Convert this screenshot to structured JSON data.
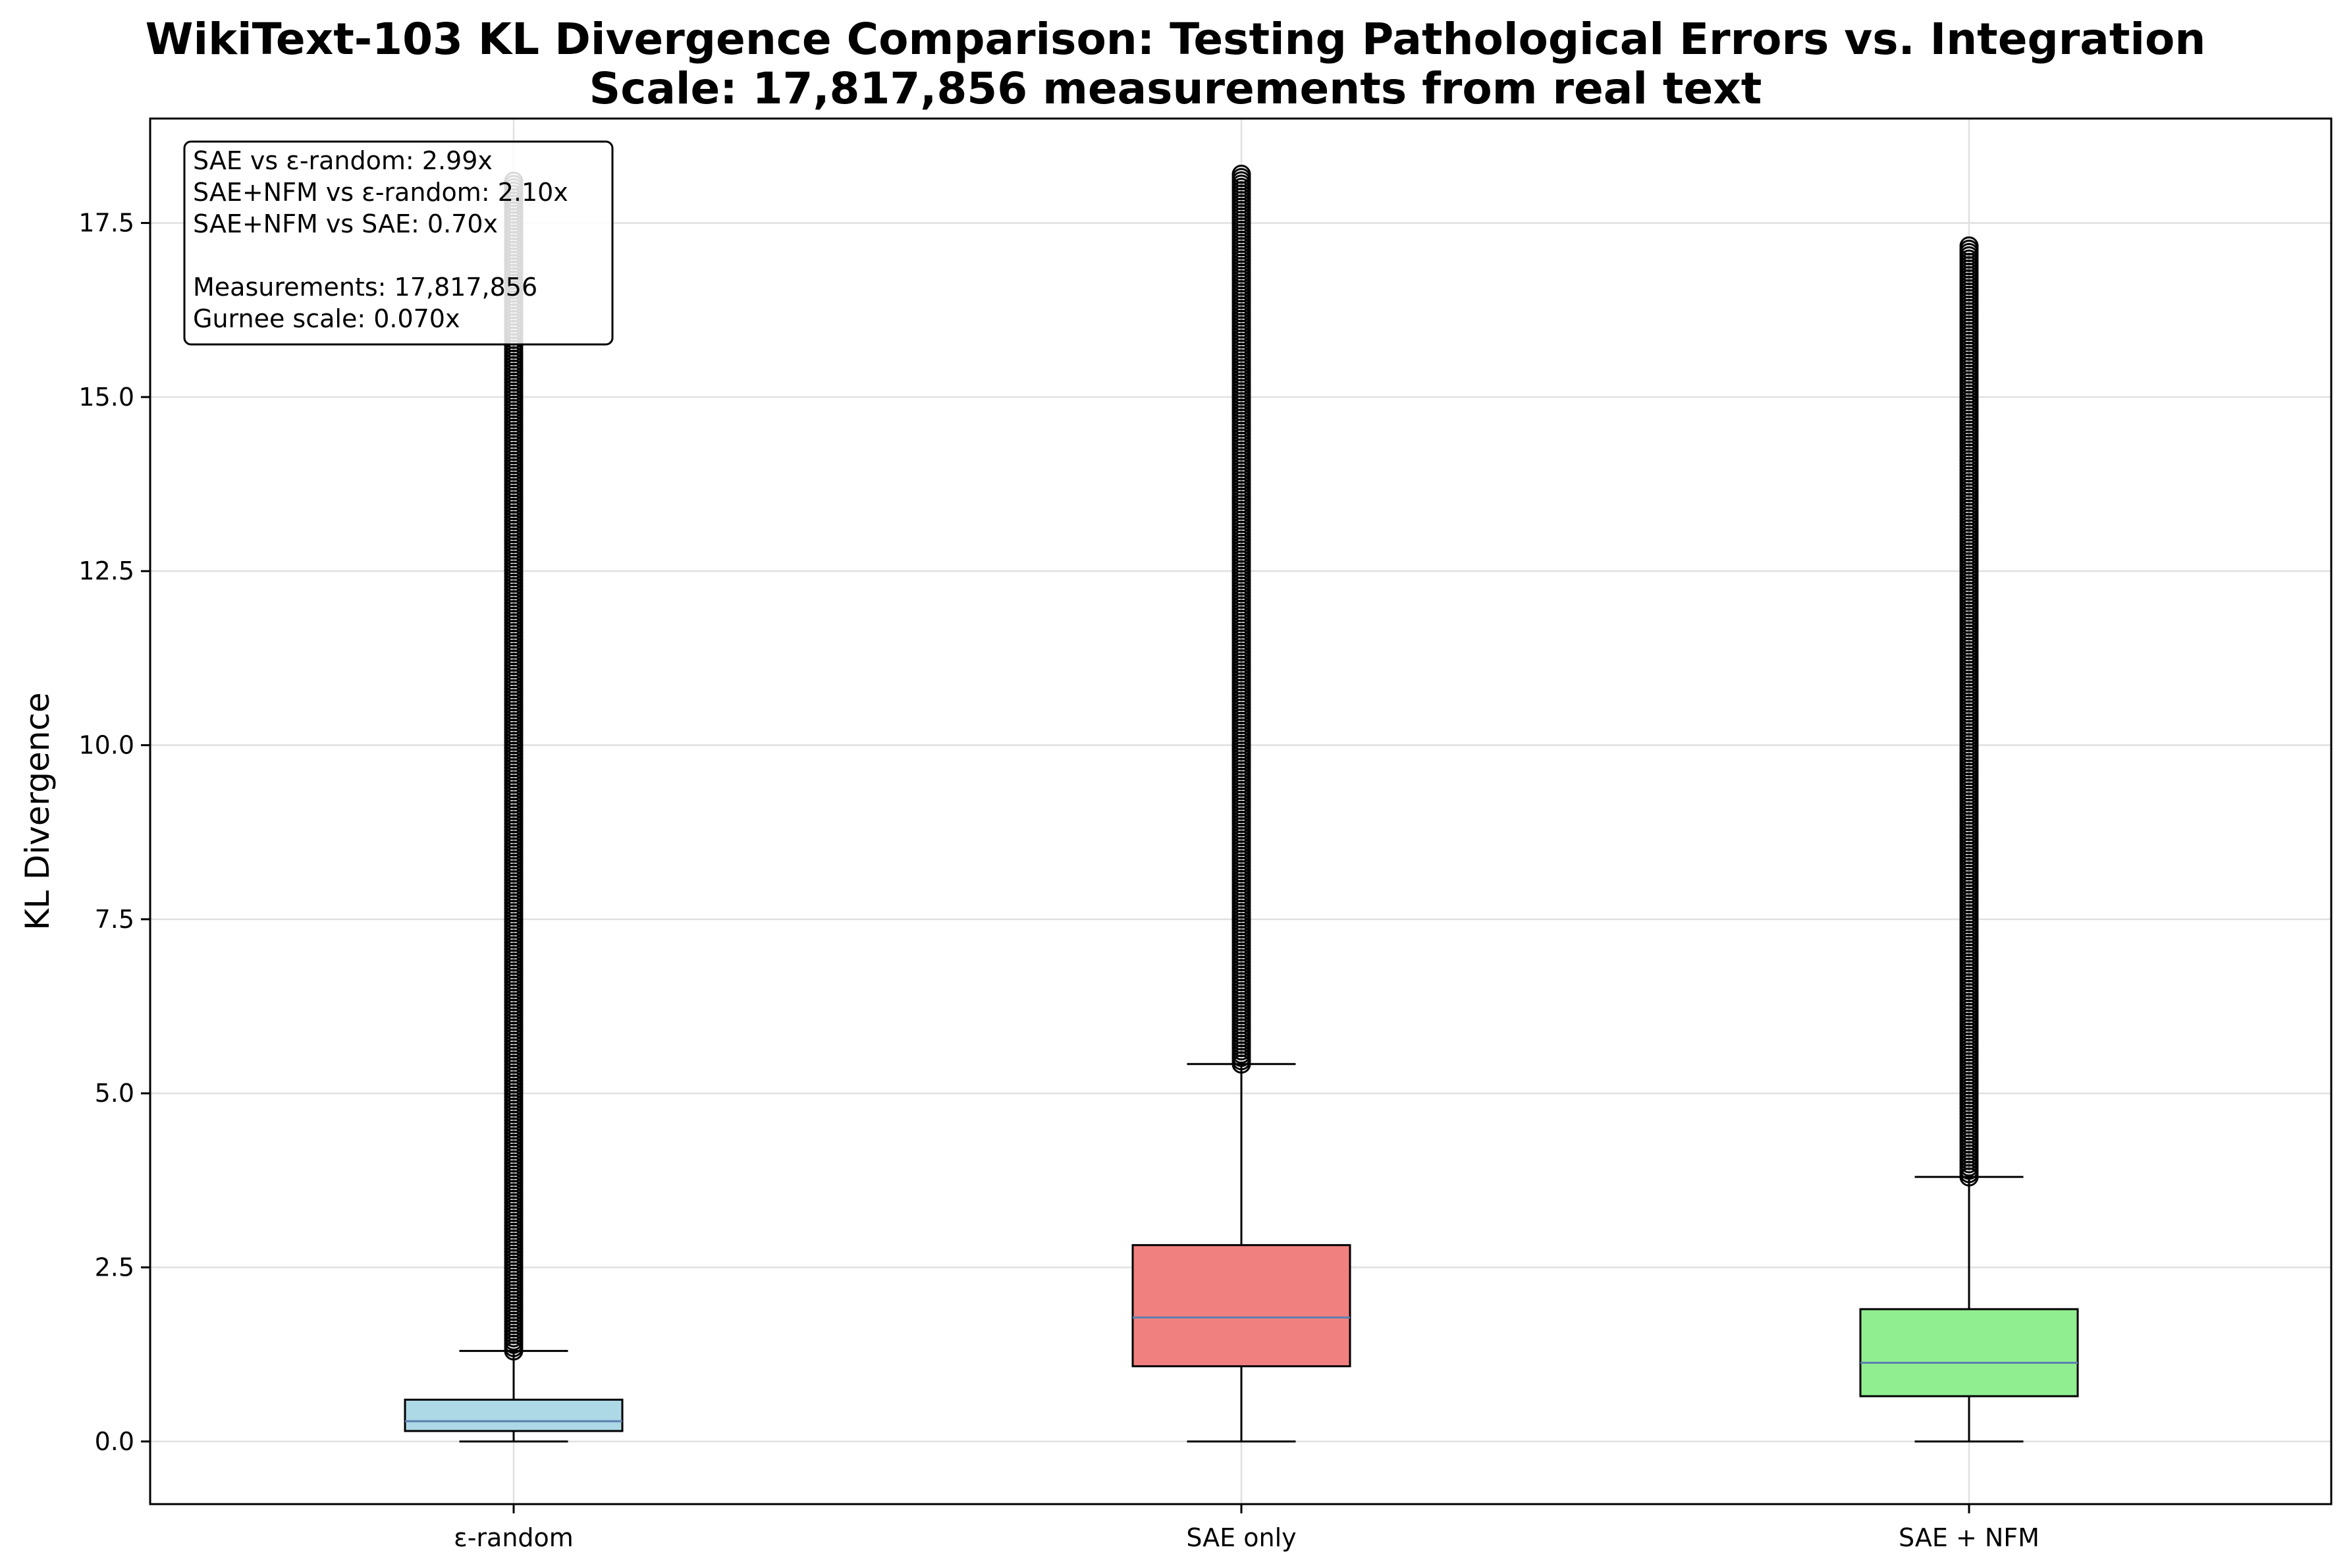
{
  "chart_data": {
    "type": "box",
    "title_line1": "WikiText-103 KL Divergence Comparison: Testing Pathological Errors vs. Integration",
    "title_line2": "Scale: 17,817,856 measurements from real text",
    "ylabel": "KL Divergence",
    "xlabel": "",
    "ylim": [
      -0.9,
      19.0
    ],
    "yticks": [
      0.0,
      2.5,
      5.0,
      7.5,
      10.0,
      12.5,
      15.0,
      17.5
    ],
    "ytick_labels": [
      "0.0",
      "2.5",
      "5.0",
      "7.5",
      "10.0",
      "12.5",
      "15.0",
      "17.5"
    ],
    "grid": true,
    "categories": [
      "ε-random",
      "SAE only",
      "SAE + NFM"
    ],
    "boxes": [
      {
        "label": "ε-random",
        "whisker_low": 0.0,
        "q1": 0.15,
        "median": 0.29,
        "q3": 0.6,
        "whisker_high": 1.3,
        "outlier_min": 1.3,
        "outlier_max": 18.1,
        "color": "#add8e6"
      },
      {
        "label": "SAE only",
        "whisker_low": 0.0,
        "q1": 1.08,
        "median": 1.78,
        "q3": 2.82,
        "whisker_high": 5.42,
        "outlier_min": 5.42,
        "outlier_max": 18.2,
        "color": "#f08080"
      },
      {
        "label": "SAE + NFM",
        "whisker_low": 0.0,
        "q1": 0.65,
        "median": 1.13,
        "q3": 1.9,
        "whisker_high": 3.8,
        "outlier_min": 3.8,
        "outlier_max": 17.17,
        "color": "#90ee90"
      }
    ],
    "annotation": {
      "lines": [
        "SAE vs ε-random: 2.99x",
        "SAE+NFM vs ε-random: 2.10x",
        "SAE+NFM vs SAE: 0.70x",
        "",
        "Measurements: 17,817,856",
        "Gurnee scale: 0.070x"
      ],
      "position": "top-left"
    },
    "median_color": "#5b7fb0"
  }
}
